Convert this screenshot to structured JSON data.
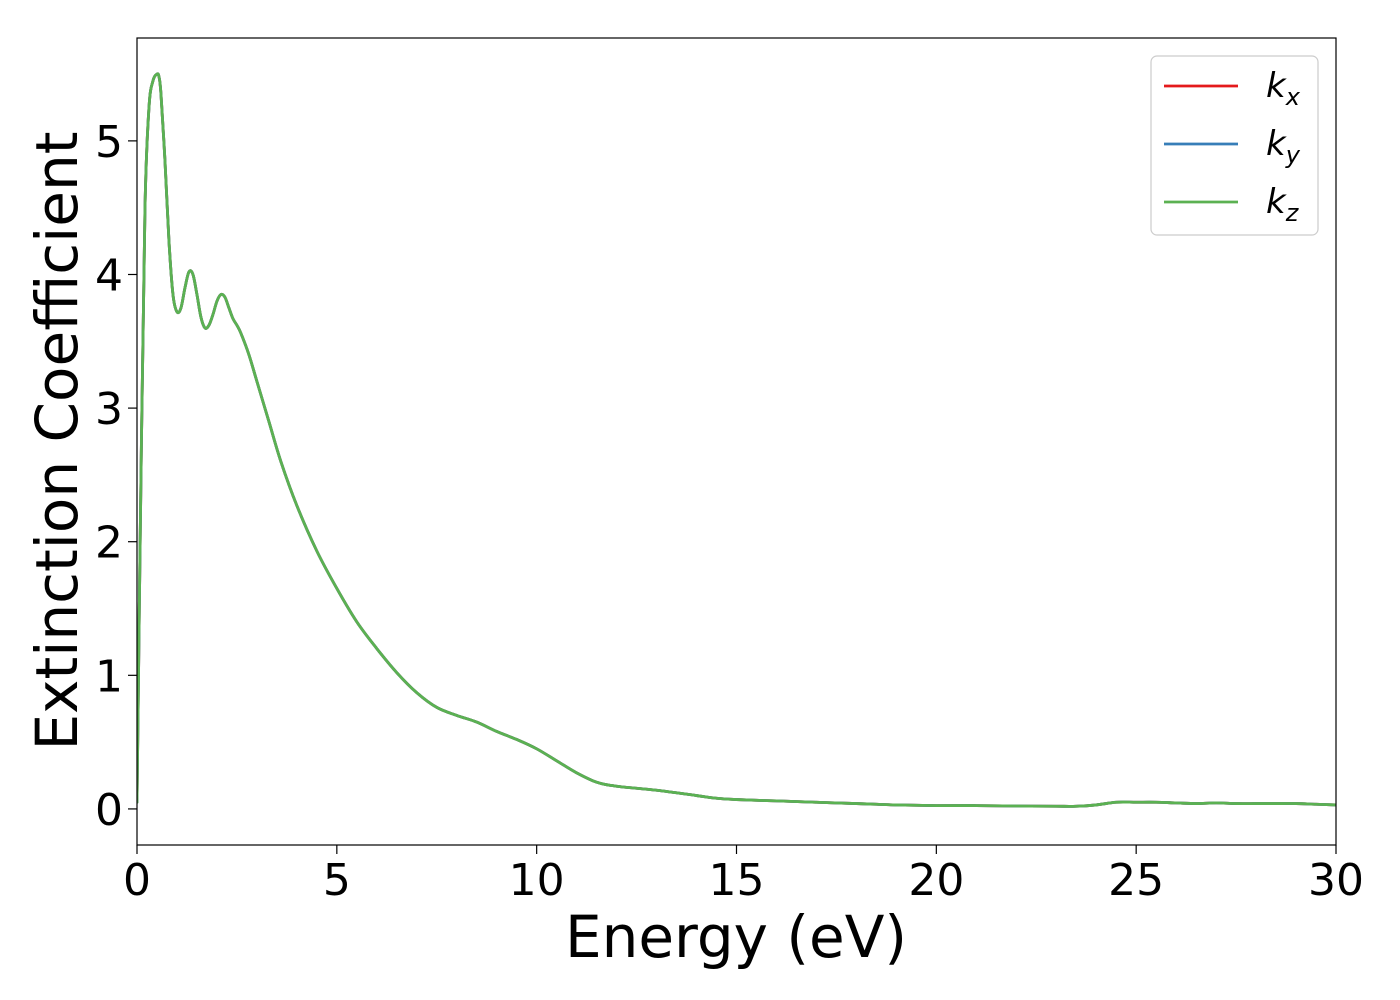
{
  "chart_data": {
    "type": "line",
    "title": "",
    "xlabel": "Energy (eV)",
    "ylabel": "Extinction Coefficient",
    "xlim": [
      0,
      30
    ],
    "ylim": [
      -0.27,
      5.77
    ],
    "xticks": [
      0,
      5,
      10,
      15,
      20,
      25,
      30
    ],
    "yticks": [
      0,
      1,
      2,
      3,
      4,
      5
    ],
    "grid": false,
    "legend_position": "top-right",
    "series": [
      {
        "name": "k_x",
        "label_base": "k",
        "label_sub": "x",
        "color": "#e41a1c",
        "x": [
          0,
          0.1,
          0.2,
          0.3,
          0.4,
          0.5,
          0.55,
          0.6,
          0.7,
          0.8,
          0.9,
          1.0,
          1.1,
          1.2,
          1.3,
          1.4,
          1.5,
          1.6,
          1.7,
          1.8,
          1.9,
          2.0,
          2.1,
          2.2,
          2.3,
          2.4,
          2.5,
          2.6,
          2.8,
          3.0,
          3.3,
          3.6,
          4.0,
          4.5,
          5.0,
          5.5,
          6.0,
          6.5,
          7.0,
          7.5,
          8.0,
          8.5,
          9.0,
          9.5,
          10.0,
          10.5,
          11.0,
          11.5,
          12.0,
          13.0,
          14.0,
          14.5,
          15.0,
          16.0,
          17.0,
          18.0,
          18.5,
          19.0,
          20.0,
          21.0,
          22.0,
          23.0,
          23.5,
          24.0,
          24.5,
          25.0,
          25.5,
          26.0,
          26.5,
          27.0,
          27.5,
          28.0,
          28.5,
          29.0,
          29.5,
          30.0
        ],
        "y": [
          0.05,
          2.5,
          4.5,
          5.25,
          5.45,
          5.5,
          5.48,
          5.35,
          4.85,
          4.25,
          3.85,
          3.72,
          3.75,
          3.9,
          4.02,
          4.0,
          3.85,
          3.68,
          3.6,
          3.62,
          3.7,
          3.8,
          3.85,
          3.83,
          3.75,
          3.67,
          3.62,
          3.56,
          3.4,
          3.2,
          2.9,
          2.6,
          2.27,
          1.93,
          1.65,
          1.4,
          1.2,
          1.02,
          0.87,
          0.76,
          0.7,
          0.65,
          0.58,
          0.52,
          0.45,
          0.36,
          0.27,
          0.2,
          0.17,
          0.14,
          0.1,
          0.08,
          0.07,
          0.06,
          0.05,
          0.04,
          0.035,
          0.03,
          0.025,
          0.025,
          0.022,
          0.02,
          0.02,
          0.03,
          0.05,
          0.05,
          0.05,
          0.045,
          0.04,
          0.045,
          0.04,
          0.04,
          0.04,
          0.04,
          0.035,
          0.03
        ]
      },
      {
        "name": "k_y",
        "label_base": "k",
        "label_sub": "y",
        "color": "#377eb8",
        "x": [
          0,
          0.1,
          0.2,
          0.3,
          0.4,
          0.5,
          0.55,
          0.6,
          0.7,
          0.8,
          0.9,
          1.0,
          1.1,
          1.2,
          1.3,
          1.4,
          1.5,
          1.6,
          1.7,
          1.8,
          1.9,
          2.0,
          2.1,
          2.2,
          2.3,
          2.4,
          2.5,
          2.6,
          2.8,
          3.0,
          3.3,
          3.6,
          4.0,
          4.5,
          5.0,
          5.5,
          6.0,
          6.5,
          7.0,
          7.5,
          8.0,
          8.5,
          9.0,
          9.5,
          10.0,
          10.5,
          11.0,
          11.5,
          12.0,
          13.0,
          14.0,
          14.5,
          15.0,
          16.0,
          17.0,
          18.0,
          18.5,
          19.0,
          20.0,
          21.0,
          22.0,
          23.0,
          23.5,
          24.0,
          24.5,
          25.0,
          25.5,
          26.0,
          26.5,
          27.0,
          27.5,
          28.0,
          28.5,
          29.0,
          29.5,
          30.0
        ],
        "y": [
          0.05,
          2.5,
          4.5,
          5.25,
          5.45,
          5.5,
          5.48,
          5.35,
          4.85,
          4.25,
          3.85,
          3.72,
          3.75,
          3.9,
          4.02,
          4.0,
          3.85,
          3.68,
          3.6,
          3.62,
          3.7,
          3.8,
          3.85,
          3.83,
          3.75,
          3.67,
          3.62,
          3.56,
          3.4,
          3.2,
          2.9,
          2.6,
          2.27,
          1.93,
          1.65,
          1.4,
          1.2,
          1.02,
          0.87,
          0.76,
          0.7,
          0.65,
          0.58,
          0.52,
          0.45,
          0.36,
          0.27,
          0.2,
          0.17,
          0.14,
          0.1,
          0.08,
          0.07,
          0.06,
          0.05,
          0.04,
          0.035,
          0.03,
          0.025,
          0.025,
          0.022,
          0.02,
          0.02,
          0.03,
          0.05,
          0.05,
          0.05,
          0.045,
          0.04,
          0.045,
          0.04,
          0.04,
          0.04,
          0.04,
          0.035,
          0.03
        ]
      },
      {
        "name": "k_z",
        "label_base": "k",
        "label_sub": "z",
        "color": "#5bb152",
        "x": [
          0,
          0.1,
          0.2,
          0.3,
          0.4,
          0.5,
          0.55,
          0.6,
          0.7,
          0.8,
          0.9,
          1.0,
          1.1,
          1.2,
          1.3,
          1.4,
          1.5,
          1.6,
          1.7,
          1.8,
          1.9,
          2.0,
          2.1,
          2.2,
          2.3,
          2.4,
          2.5,
          2.6,
          2.8,
          3.0,
          3.3,
          3.6,
          4.0,
          4.5,
          5.0,
          5.5,
          6.0,
          6.5,
          7.0,
          7.5,
          8.0,
          8.5,
          9.0,
          9.5,
          10.0,
          10.5,
          11.0,
          11.5,
          12.0,
          13.0,
          14.0,
          14.5,
          15.0,
          16.0,
          17.0,
          18.0,
          18.5,
          19.0,
          20.0,
          21.0,
          22.0,
          23.0,
          23.5,
          24.0,
          24.5,
          25.0,
          25.5,
          26.0,
          26.5,
          27.0,
          27.5,
          28.0,
          28.5,
          29.0,
          29.5,
          30.0
        ],
        "y": [
          0.05,
          2.5,
          4.5,
          5.25,
          5.45,
          5.5,
          5.48,
          5.35,
          4.85,
          4.25,
          3.85,
          3.72,
          3.75,
          3.9,
          4.02,
          4.0,
          3.85,
          3.68,
          3.6,
          3.62,
          3.7,
          3.8,
          3.85,
          3.83,
          3.75,
          3.67,
          3.62,
          3.56,
          3.4,
          3.2,
          2.9,
          2.6,
          2.27,
          1.93,
          1.65,
          1.4,
          1.2,
          1.02,
          0.87,
          0.76,
          0.7,
          0.65,
          0.58,
          0.52,
          0.45,
          0.36,
          0.27,
          0.2,
          0.17,
          0.14,
          0.1,
          0.08,
          0.07,
          0.06,
          0.05,
          0.04,
          0.035,
          0.03,
          0.025,
          0.025,
          0.022,
          0.02,
          0.02,
          0.03,
          0.05,
          0.05,
          0.05,
          0.045,
          0.04,
          0.045,
          0.04,
          0.04,
          0.04,
          0.04,
          0.035,
          0.03
        ]
      }
    ]
  }
}
